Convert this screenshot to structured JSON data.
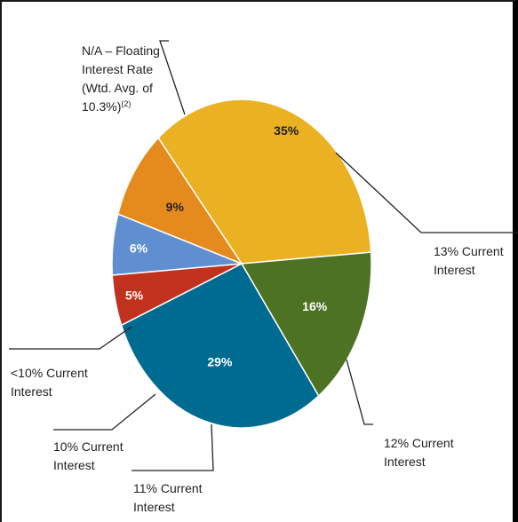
{
  "chart_data": {
    "type": "pie",
    "slices": [
      {
        "label": [
          "N/A – Floating",
          "Interest Rate",
          "(Wtd. Avg. of",
          "10.3%)"
        ],
        "label_sup": "(2)",
        "value": 35,
        "pct_text": "35%",
        "color": "#EAB123",
        "pct_color": "#222222"
      },
      {
        "label": [
          "13% Current",
          "Interest"
        ],
        "value": 16,
        "pct_text": "16%",
        "color": "#4D7224",
        "pct_color": "#ffffff"
      },
      {
        "label": [
          "12% Current",
          "Interest"
        ],
        "value": 29,
        "pct_text": "29%",
        "color": "#006B91",
        "pct_color": "#ffffff"
      },
      {
        "label": [
          "11% Current",
          "Interest"
        ],
        "value": 5,
        "pct_text": "5%",
        "color": "#C0321E",
        "pct_color": "#ffffff"
      },
      {
        "label": [
          "10% Current",
          "Interest"
        ],
        "value": 6,
        "pct_text": "6%",
        "color": "#5F8FD0",
        "pct_color": "#ffffff"
      },
      {
        "label": [
          "<10% Current",
          "Interest"
        ],
        "value": 9,
        "pct_text": "9%",
        "color": "#E58B1E",
        "pct_color": "#222222"
      }
    ]
  }
}
